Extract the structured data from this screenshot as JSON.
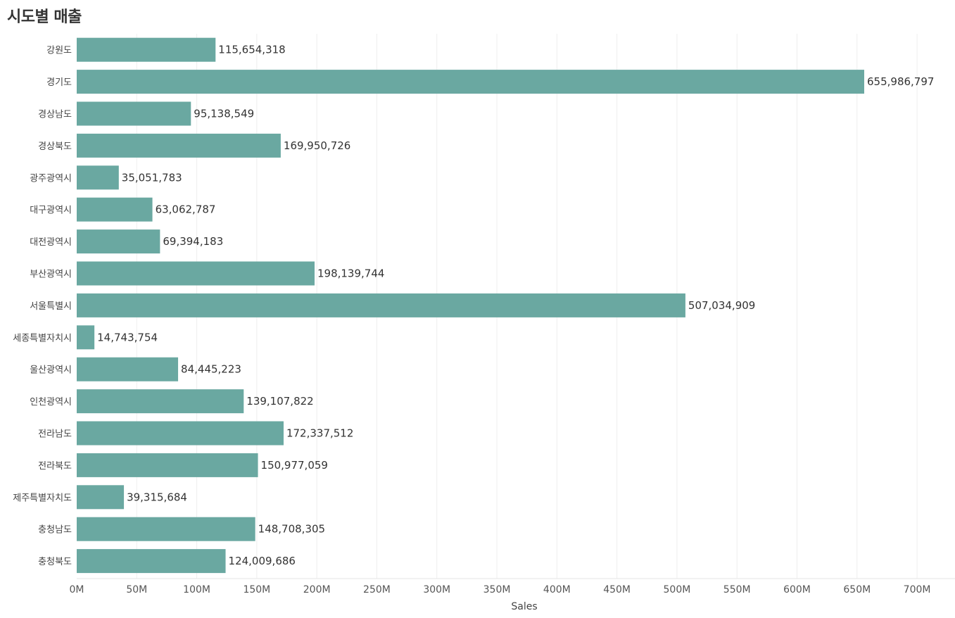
{
  "chart_data": {
    "type": "bar",
    "orientation": "horizontal",
    "title": "시도별 매출",
    "xlabel": "Sales",
    "ylabel": "",
    "xlim": [
      0,
      730000000
    ],
    "grid": "vertical",
    "bar_color": "#6aa8a1",
    "categories": [
      "강원도",
      "경기도",
      "경상남도",
      "경상북도",
      "광주광역시",
      "대구광역시",
      "대전광역시",
      "부산광역시",
      "서울특별시",
      "세종특별자치시",
      "울산광역시",
      "인천광역시",
      "전라남도",
      "전라북도",
      "제주특별자치도",
      "충청남도",
      "충청북도"
    ],
    "values": [
      115654318,
      655986797,
      95138549,
      169950726,
      35051783,
      63062787,
      69394183,
      198139744,
      507034909,
      14743754,
      84445223,
      139107822,
      172337512,
      150977059,
      39315684,
      148708305,
      124009686
    ],
    "value_labels": [
      "115,654,318",
      "655,986,797",
      "95,138,549",
      "169,950,726",
      "35,051,783",
      "63,062,787",
      "69,394,183",
      "198,139,744",
      "507,034,909",
      "14,743,754",
      "84,445,223",
      "139,107,822",
      "172,337,512",
      "150,977,059",
      "39,315,684",
      "148,708,305",
      "124,009,686"
    ],
    "ticks": [
      0,
      50000000,
      100000000,
      150000000,
      200000000,
      250000000,
      300000000,
      350000000,
      400000000,
      450000000,
      500000000,
      550000000,
      600000000,
      650000000,
      700000000
    ],
    "tick_labels": [
      "0M",
      "50M",
      "100M",
      "150M",
      "200M",
      "250M",
      "300M",
      "350M",
      "400M",
      "450M",
      "500M",
      "550M",
      "600M",
      "650M",
      "700M"
    ]
  }
}
